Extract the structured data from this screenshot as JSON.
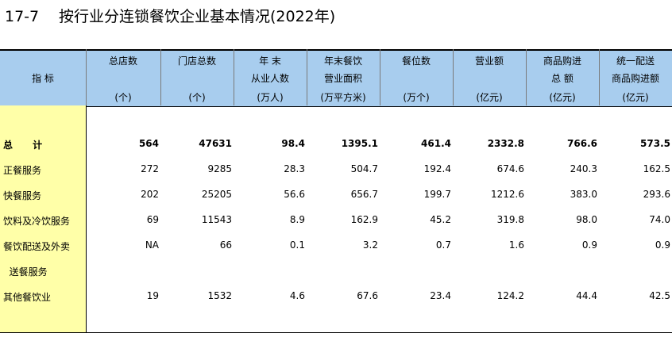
{
  "title": {
    "number": "17-7",
    "text": "按行业分连锁餐饮企业基本情况(2022年)"
  },
  "header": {
    "stub_label": "指  标",
    "columns": [
      {
        "lines": [
          "总店数"
        ],
        "unit": "(个)"
      },
      {
        "lines": [
          "门店总数"
        ],
        "unit": "(个)"
      },
      {
        "lines": [
          "年  末",
          "从业人数"
        ],
        "unit": "(万人)"
      },
      {
        "lines": [
          "年末餐饮",
          "营业面积"
        ],
        "unit": "(万平方米)"
      },
      {
        "lines": [
          "餐位数"
        ],
        "unit": "(万个)"
      },
      {
        "lines": [
          "营业额"
        ],
        "unit": "(亿元)"
      },
      {
        "lines": [
          "商品购进",
          "总  额"
        ],
        "unit": "(亿元)"
      },
      {
        "lines": [
          "统一配送",
          "商品购进额"
        ],
        "unit": "(亿元)"
      }
    ]
  },
  "rows": [
    {
      "label": "总      计",
      "values": [
        "564",
        "47631",
        "98.4",
        "1395.1",
        "461.4",
        "2332.8",
        "766.6",
        "573.5"
      ]
    },
    {
      "label": "正餐服务",
      "values": [
        "272",
        "9285",
        "28.3",
        "504.7",
        "192.4",
        "674.6",
        "240.3",
        "162.5"
      ]
    },
    {
      "label": "快餐服务",
      "values": [
        "202",
        "25205",
        "56.6",
        "656.7",
        "199.7",
        "1212.6",
        "383.0",
        "293.6"
      ]
    },
    {
      "label": "饮料及冷饮服务",
      "values": [
        "69",
        "11543",
        "8.9",
        "162.9",
        "45.2",
        "319.8",
        "98.0",
        "74.0"
      ]
    },
    {
      "label": "餐饮配送及外卖",
      "values": [
        "NA",
        "66",
        "0.1",
        "3.2",
        "0.7",
        "1.6",
        "0.9",
        "0.9"
      ]
    },
    {
      "label": "  送餐服务",
      "values": []
    },
    {
      "label": "其他餐饮业",
      "values": [
        "19",
        "1532",
        "4.6",
        "67.6",
        "23.4",
        "124.2",
        "44.4",
        "42.5"
      ]
    }
  ]
}
